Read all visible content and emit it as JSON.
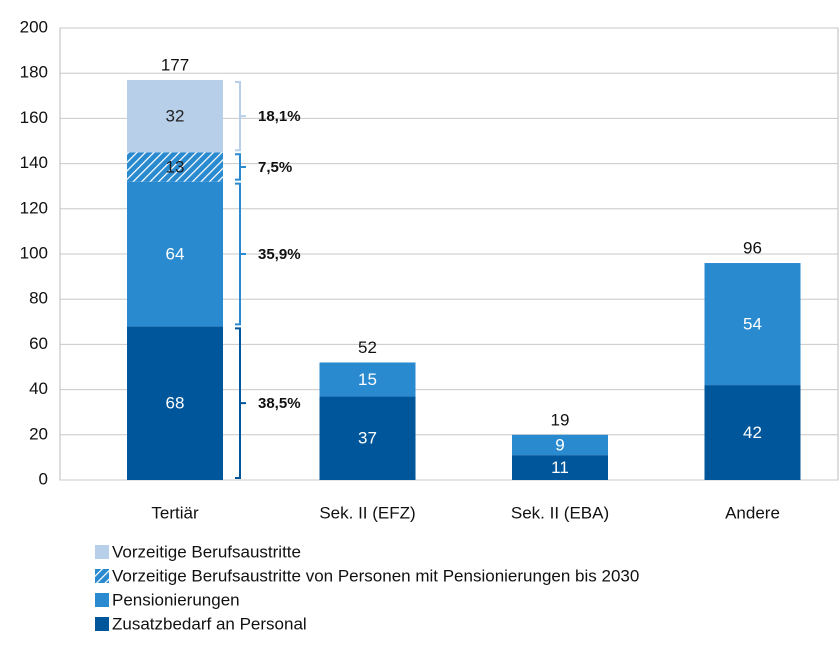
{
  "chart_data": {
    "type": "stacked_bar",
    "categories": [
      "Tertiär",
      "Sek. II (EFZ)",
      "Sek. II (EBA)",
      "Andere"
    ],
    "series": [
      {
        "name": "Zusatzbedarf an Personal",
        "color": "#00569a",
        "values": [
          68,
          37,
          11,
          42
        ]
      },
      {
        "name": "Pensionierungen",
        "color": "#2a8ad0",
        "values": [
          64,
          15,
          9,
          54
        ]
      },
      {
        "name": "Vorzeitige Berufsaustritte von Personen mit Pensionierungen bis 2030",
        "color": "#2a8ad0",
        "hatched": true,
        "values": [
          13,
          null,
          null,
          null
        ]
      },
      {
        "name": "Vorzeitige Berufsaustritte",
        "color": "#b8cfe9",
        "values": [
          32,
          null,
          null,
          null
        ]
      }
    ],
    "totals": [
      177,
      52,
      19,
      96
    ],
    "shares": {
      "values": [
        38.5,
        35.9,
        7.5,
        18.1
      ],
      "value_labels": [
        "38,5%",
        "35,9%",
        "7,5%",
        "18,1%"
      ]
    },
    "ylim": [
      0,
      200
    ],
    "yticks": [
      0,
      20,
      40,
      60,
      80,
      100,
      120,
      140,
      160,
      180,
      200
    ],
    "grid": true
  }
}
